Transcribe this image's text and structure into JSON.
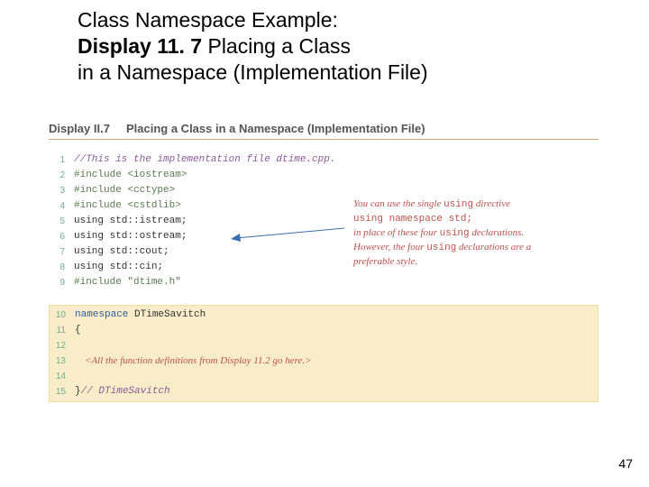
{
  "title": {
    "line1": "Class Namespace Example:",
    "line2_bold": "Display 11. 7",
    "line2_rest": "  Placing a Class",
    "line3": "in a Namespace (Implementation File)"
  },
  "display_header": {
    "label": "Display II.7",
    "title": "Placing a Class in a Namespace (Implementation File)"
  },
  "code_block1": [
    {
      "n": "1",
      "cls": "c-comment",
      "text": "//This is the implementation file dtime.cpp."
    },
    {
      "n": "2",
      "cls": "c-pre",
      "text": "#include <iostream>"
    },
    {
      "n": "3",
      "cls": "c-pre",
      "text": "#include <cctype>"
    },
    {
      "n": "4",
      "cls": "c-pre",
      "text": "#include <cstdlib>"
    },
    {
      "n": "5",
      "cls": "c-plain",
      "text": "using std::istream;"
    },
    {
      "n": "6",
      "cls": "c-plain",
      "text": "using std::ostream;"
    },
    {
      "n": "7",
      "cls": "c-plain",
      "text": "using std::cout;"
    },
    {
      "n": "8",
      "cls": "c-plain",
      "text": "using std::cin;"
    },
    {
      "n": "9",
      "cls": "c-pre",
      "text": "#include \"dtime.h\""
    }
  ],
  "code_block2": [
    {
      "n": "10",
      "kind": "ns-head"
    },
    {
      "n": "11",
      "kind": "brace-open"
    },
    {
      "n": "12",
      "kind": "empty"
    },
    {
      "n": "13",
      "kind": "placeholder"
    },
    {
      "n": "14",
      "kind": "empty"
    },
    {
      "n": "15",
      "kind": "brace-close"
    }
  ],
  "ns": {
    "keyword": "namespace",
    "name": "DTimeSavitch",
    "open": "{",
    "placeholder": "    <All the function definitions from Display 11.2 go here.>",
    "close": "}",
    "close_comment": "// DTimeSavitch"
  },
  "annotation": {
    "l1a": "You can use the single ",
    "l1b": "using",
    "l1c": " directive",
    "l2a": "using namespace std;",
    "l3a": "in place of these four ",
    "l3b": "using",
    "l3c": " declarations.",
    "l4a": "However, the four ",
    "l4b": "using",
    "l4c": " declarations are a",
    "l5": "preferable style."
  },
  "page_number": "47",
  "colors": {
    "annotation": "#c0504d",
    "rule": "#c7a37a",
    "ns_box_bg": "#f9edc9",
    "lineno": "#6fae8f"
  }
}
